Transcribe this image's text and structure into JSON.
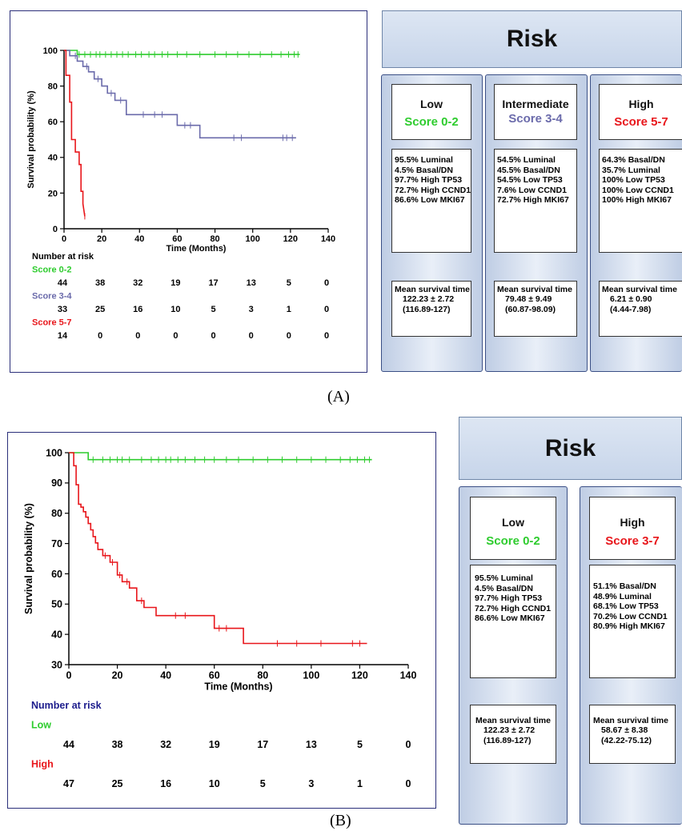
{
  "panel_labels": {
    "a": "(A)",
    "b": "(B)"
  },
  "colors": {
    "low": "#2ecc2e",
    "mid": "#6b6bab",
    "high": "#e8161b",
    "risk_text_low": "#2ecc2e",
    "risk_text_mid": "#6b6bab",
    "risk_text_high": "#e8161b"
  },
  "chart_data": [
    {
      "type": "line",
      "subtype": "kaplan-meier",
      "ylabel": "Survival probability (%)",
      "xlabel": "Time (Months)",
      "xlim": [
        0,
        140
      ],
      "ylim": [
        0,
        100
      ],
      "xticks": [
        0,
        20,
        40,
        60,
        80,
        100,
        120,
        140
      ],
      "yticks": [
        0,
        20,
        40,
        60,
        80,
        100
      ],
      "series": [
        {
          "name": "Score 0-2",
          "color": "#2ecc2e",
          "x": [
            0,
            7,
            7,
            125
          ],
          "y": [
            100,
            100,
            97.7,
            97.7
          ],
          "censor": [
            8,
            11,
            14,
            17,
            19,
            22,
            25,
            28,
            31,
            34,
            38,
            41,
            45,
            48,
            52,
            55,
            60,
            65,
            72,
            80,
            86,
            92,
            98,
            104,
            110,
            115,
            119,
            122,
            124
          ]
        },
        {
          "name": "Score 3-4",
          "color": "#6b6bab",
          "x": [
            0,
            3,
            3,
            7,
            7,
            10,
            10,
            13,
            13,
            16,
            16,
            20,
            20,
            23,
            23,
            27,
            27,
            33,
            33,
            60,
            60,
            72,
            72,
            123
          ],
          "y": [
            100,
            100,
            97,
            97,
            94,
            94,
            91,
            91,
            88,
            88,
            84,
            84,
            80,
            80,
            76,
            76,
            72,
            72,
            64,
            64,
            58,
            58,
            51,
            51
          ],
          "censor": [
            6,
            12,
            18,
            25,
            30,
            42,
            48,
            52,
            64,
            67,
            90,
            94,
            116,
            118,
            121
          ]
        },
        {
          "name": "Score 5-7",
          "color": "#e8161b",
          "x": [
            0,
            1,
            1,
            3,
            3,
            4,
            4,
            6,
            6,
            8,
            8,
            9,
            9,
            10,
            10,
            11
          ],
          "y": [
            100,
            100,
            86,
            86,
            71,
            71,
            50,
            50,
            43,
            43,
            36,
            36,
            21,
            21,
            14,
            7
          ],
          "censor": [
            11
          ]
        }
      ],
      "risk_table": {
        "title": "Number at risk",
        "times": [
          0,
          20,
          40,
          60,
          80,
          100,
          120,
          140
        ],
        "rows": [
          {
            "label": "Score 0-2",
            "counts": [
              "44",
              "38",
              "32",
              "19",
              "17",
              "13",
              "5",
              "0"
            ]
          },
          {
            "label": "Score 3-4",
            "counts": [
              "33",
              "25",
              "16",
              "10",
              "5",
              "3",
              "1",
              "0"
            ]
          },
          {
            "label": "Score 5-7",
            "counts": [
              "14",
              "0",
              "0",
              "0",
              "0",
              "0",
              "0",
              "0"
            ]
          }
        ]
      }
    },
    {
      "type": "line",
      "subtype": "kaplan-meier",
      "ylabel": "Survival probability (%)",
      "xlabel": "Time (Months)",
      "xlim": [
        0,
        140
      ],
      "ylim": [
        30,
        100
      ],
      "xticks": [
        0,
        20,
        40,
        60,
        80,
        100,
        120,
        140
      ],
      "yticks": [
        30,
        40,
        50,
        60,
        70,
        80,
        90,
        100
      ],
      "series": [
        {
          "name": "Low",
          "color": "#2ecc2e",
          "x": [
            0,
            8,
            8,
            125
          ],
          "y": [
            100,
            100,
            97.7,
            97.7
          ],
          "censor": [
            10,
            14,
            17,
            20,
            22,
            25,
            30,
            34,
            37,
            40,
            42,
            45,
            48,
            52,
            56,
            60,
            65,
            70,
            76,
            82,
            88,
            94,
            100,
            106,
            112,
            116,
            119,
            122,
            124
          ]
        },
        {
          "name": "High",
          "color": "#e8161b",
          "x": [
            0,
            2,
            2,
            3,
            3,
            4,
            4,
            5,
            5,
            6,
            6,
            7,
            7,
            8,
            8,
            9,
            9,
            10,
            10,
            11,
            11,
            12,
            12,
            14,
            14,
            17,
            17,
            20,
            20,
            22,
            22,
            25,
            25,
            28,
            28,
            31,
            31,
            36,
            36,
            60,
            60,
            72,
            72,
            123
          ],
          "y": [
            100,
            100,
            95.7,
            95.7,
            89.4,
            89.4,
            83,
            83,
            82,
            82,
            80.5,
            80.5,
            78.7,
            78.7,
            76.6,
            76.6,
            74.5,
            74.5,
            72.3,
            72.3,
            70.2,
            70.2,
            68,
            68,
            66,
            66,
            63.8,
            63.8,
            59.6,
            59.6,
            57.4,
            57.4,
            55.3,
            55.3,
            51.1,
            51.1,
            48.9,
            48.9,
            46.2,
            46.2,
            42,
            42,
            37,
            37
          ],
          "censor": [
            15,
            18,
            21,
            24,
            30,
            44,
            48,
            62,
            65,
            86,
            94,
            104,
            117,
            120
          ]
        }
      ],
      "risk_table": {
        "title": "Number at risk",
        "times": [
          0,
          20,
          40,
          60,
          80,
          100,
          120,
          140
        ],
        "rows": [
          {
            "label": "Low",
            "counts": [
              "44",
              "38",
              "32",
              "19",
              "17",
              "13",
              "5",
              "0"
            ]
          },
          {
            "label": "High",
            "counts": [
              "47",
              "25",
              "16",
              "10",
              "5",
              "3",
              "1",
              "0"
            ]
          }
        ]
      }
    }
  ],
  "risk_a": {
    "header": "Risk",
    "columns": [
      {
        "title": "Low",
        "score": "Score 0-2",
        "color": "#2ecc2e",
        "stats": [
          "95.5% Luminal",
          "4.5% Basal/DN",
          "97.7%  High TP53",
          "72.7% High CCND1",
          "86.6% Low MKI67"
        ],
        "mean_title": "Mean survival time",
        "mean_value": "122.23 ± 2.72",
        "mean_ci": "(116.89-127)"
      },
      {
        "title": "Intermediate",
        "score": "Score 3-4",
        "color": "#6b6bab",
        "stats": [
          "54.5% Luminal",
          "45.5% Basal/DN",
          "54.5%  Low TP53",
          "7.6% Low CCND1",
          "72.7% High MKI67"
        ],
        "mean_title": "Mean survival time",
        "mean_value": "79.48 ± 9.49",
        "mean_ci": "(60.87-98.09)"
      },
      {
        "title": "High",
        "score": "Score 5-7",
        "color": "#e8161b",
        "stats": [
          "64.3% Basal/DN",
          "35.7% Luminal",
          "100%  Low TP53",
          "100% Low CCND1",
          "100% High MKI67"
        ],
        "mean_title": "Mean survival time",
        "mean_value": "6.21 ± 0.90",
        "mean_ci": "(4.44-7.98)"
      }
    ]
  },
  "risk_b": {
    "header": "Risk",
    "columns": [
      {
        "title": "Low",
        "score": "Score 0-2",
        "color": "#2ecc2e",
        "stats": [
          "95.5% Luminal",
          "4.5% Basal/DN",
          "97.7%  High TP53",
          "72.7% High CCND1",
          "86.6% Low MKI67"
        ],
        "mean_title": "Mean survival time",
        "mean_value": "122.23 ± 2.72",
        "mean_ci": "(116.89-127)"
      },
      {
        "title": "High",
        "score": "Score 3-7",
        "color": "#e8161b",
        "stats": [
          "51.1% Basal/DN",
          "48.9% Luminal",
          "68.1%  Low TP53",
          "70.2% Low CCND1",
          "80.9% High MKI67"
        ],
        "mean_title": "Mean survival time",
        "mean_value": "58.67 ± 8.38",
        "mean_ci": "(42.22-75.12)"
      }
    ]
  }
}
